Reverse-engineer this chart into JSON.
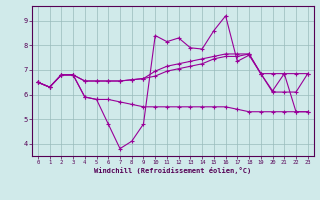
{
  "xlabel": "Windchill (Refroidissement éolien,°C)",
  "x": [
    0,
    1,
    2,
    3,
    4,
    5,
    6,
    7,
    8,
    9,
    10,
    11,
    12,
    13,
    14,
    15,
    16,
    17,
    18,
    19,
    20,
    21,
    22,
    23
  ],
  "line1": [
    6.5,
    6.3,
    6.8,
    6.8,
    5.9,
    5.8,
    4.8,
    3.8,
    4.1,
    4.8,
    8.4,
    8.15,
    8.3,
    7.9,
    7.85,
    8.6,
    9.2,
    7.35,
    7.6,
    6.85,
    6.15,
    6.85,
    5.3,
    5.3
  ],
  "line2": [
    6.5,
    6.3,
    6.8,
    6.8,
    6.55,
    6.55,
    6.55,
    6.55,
    6.6,
    6.65,
    6.75,
    6.95,
    7.05,
    7.15,
    7.25,
    7.45,
    7.55,
    7.55,
    7.65,
    6.85,
    6.85,
    6.85,
    6.85,
    6.85
  ],
  "line3": [
    6.5,
    6.3,
    6.8,
    6.8,
    6.55,
    6.55,
    6.55,
    6.55,
    6.6,
    6.65,
    6.95,
    7.15,
    7.25,
    7.35,
    7.45,
    7.55,
    7.65,
    7.65,
    7.65,
    6.85,
    6.1,
    6.1,
    6.1,
    6.85
  ],
  "line4": [
    6.5,
    6.3,
    6.8,
    6.8,
    5.9,
    5.8,
    5.8,
    5.7,
    5.6,
    5.5,
    5.5,
    5.5,
    5.5,
    5.5,
    5.5,
    5.5,
    5.5,
    5.4,
    5.3,
    5.3,
    5.3,
    5.3,
    5.3,
    5.3
  ],
  "line_color": "#990099",
  "bg_color": "#d0eaea",
  "grid_color": "#99bbbb",
  "ylim": [
    3.5,
    9.6
  ],
  "yticks": [
    4,
    5,
    6,
    7,
    8,
    9
  ],
  "xticks": [
    0,
    1,
    2,
    3,
    4,
    5,
    6,
    7,
    8,
    9,
    10,
    11,
    12,
    13,
    14,
    15,
    16,
    17,
    18,
    19,
    20,
    21,
    22,
    23
  ]
}
